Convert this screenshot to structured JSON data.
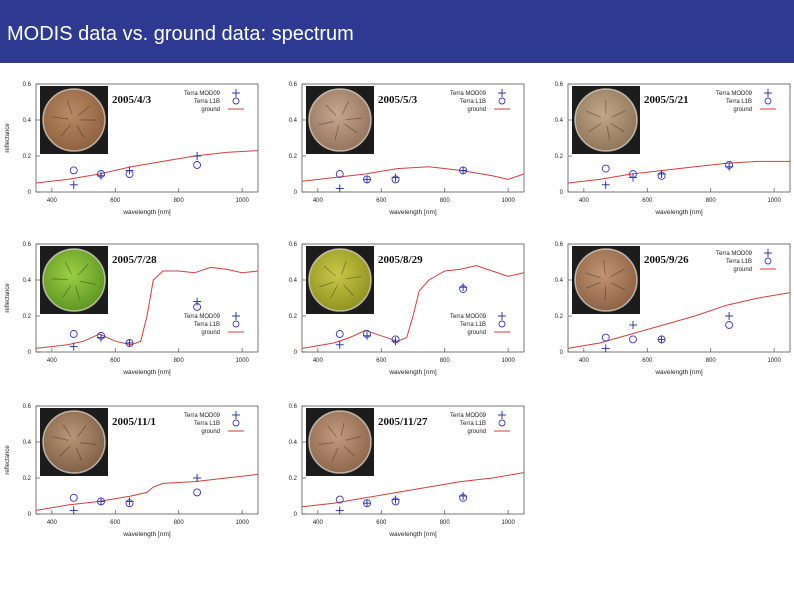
{
  "slide": {
    "title": "MODIS data vs. ground data: spectrum"
  },
  "colors": {
    "title_bar": "#2e3a91",
    "ground_line": "#d2403c",
    "terra_l1b": "#3b39c0",
    "terra_mod09": "#1d2a9a"
  },
  "chart_data": [
    {
      "type": "line",
      "date": "2005/4/3",
      "xlabel": "wavelength [nm]",
      "ylabel": "reflectance",
      "xticks": [
        "400",
        "600",
        "800",
        "1000"
      ],
      "yticks": [
        "0",
        "0.2",
        "0.4",
        "0.6"
      ],
      "xlim": [
        350,
        1050
      ],
      "ylim": [
        0,
        0.6
      ],
      "legend": [
        "Terra MOD09",
        "Terra L1B",
        "ground"
      ],
      "legend_position": "top-right",
      "ground": {
        "x": [
          350,
          450,
          550,
          650,
          750,
          850,
          950,
          1050
        ],
        "y": [
          0.05,
          0.07,
          0.1,
          0.14,
          0.17,
          0.2,
          0.22,
          0.23
        ]
      },
      "terra_l1b": {
        "x": [
          469,
          555,
          645,
          858
        ],
        "y": [
          0.12,
          0.1,
          0.1,
          0.15
        ]
      },
      "terra_mod09": {
        "x": [
          469,
          555,
          645,
          858
        ],
        "y": [
          0.04,
          0.09,
          0.12,
          0.2
        ]
      }
    },
    {
      "type": "line",
      "date": "2005/5/3",
      "xlabel": "wavelength [nm]",
      "ylabel": "",
      "xticks": [
        "400",
        "600",
        "800",
        "1000"
      ],
      "yticks": [
        "0",
        "0.2",
        "0.4",
        "0.6"
      ],
      "xlim": [
        350,
        1050
      ],
      "ylim": [
        0,
        0.6
      ],
      "legend": [
        "Terra MOD09",
        "Terra L1B",
        "ground"
      ],
      "legend_position": "top-right",
      "ground": {
        "x": [
          350,
          450,
          550,
          650,
          750,
          850,
          950,
          1000,
          1050
        ],
        "y": [
          0.06,
          0.08,
          0.1,
          0.13,
          0.14,
          0.12,
          0.09,
          0.07,
          0.1
        ]
      },
      "terra_l1b": {
        "x": [
          469,
          555,
          645,
          858
        ],
        "y": [
          0.1,
          0.07,
          0.07,
          0.12
        ]
      },
      "terra_mod09": {
        "x": [
          469,
          555,
          645,
          858
        ],
        "y": [
          0.02,
          0.07,
          0.08,
          0.12
        ]
      }
    },
    {
      "type": "line",
      "date": "2005/5/21",
      "xlabel": "wavelength [nm]",
      "ylabel": "",
      "xticks": [
        "400",
        "600",
        "800",
        "1000"
      ],
      "yticks": [
        "0",
        "0.2",
        "0.4",
        "0.6"
      ],
      "xlim": [
        350,
        1050
      ],
      "ylim": [
        0,
        0.6
      ],
      "legend": [
        "Terra MOD09",
        "Terra L1B",
        "ground"
      ],
      "legend_position": "top-right",
      "ground": {
        "x": [
          350,
          450,
          550,
          650,
          750,
          850,
          950,
          1050
        ],
        "y": [
          0.05,
          0.07,
          0.1,
          0.12,
          0.14,
          0.16,
          0.17,
          0.17
        ]
      },
      "terra_l1b": {
        "x": [
          469,
          555,
          645,
          858
        ],
        "y": [
          0.13,
          0.1,
          0.09,
          0.15
        ]
      },
      "terra_mod09": {
        "x": [
          469,
          555,
          645,
          858
        ],
        "y": [
          0.04,
          0.08,
          0.1,
          0.14
        ]
      }
    },
    {
      "type": "line",
      "date": "2005/7/28",
      "xlabel": "wavelength [nm]",
      "ylabel": "reflectance",
      "xticks": [
        "400",
        "600",
        "800",
        "1000"
      ],
      "yticks": [
        "0",
        "0.2",
        "0.4",
        "0.6"
      ],
      "xlim": [
        350,
        1050
      ],
      "ylim": [
        0,
        0.6
      ],
      "legend": [
        "Terra MOD09",
        "Terra L1B",
        "ground"
      ],
      "legend_position": "bottom-right",
      "ground": {
        "x": [
          350,
          450,
          500,
          550,
          600,
          650,
          680,
          700,
          720,
          750,
          800,
          850,
          900,
          950,
          1000,
          1050
        ],
        "y": [
          0.02,
          0.04,
          0.06,
          0.1,
          0.06,
          0.04,
          0.06,
          0.2,
          0.4,
          0.45,
          0.45,
          0.44,
          0.47,
          0.46,
          0.44,
          0.45
        ]
      },
      "terra_l1b": {
        "x": [
          469,
          555,
          645,
          858
        ],
        "y": [
          0.1,
          0.09,
          0.05,
          0.25
        ]
      },
      "terra_mod09": {
        "x": [
          469,
          555,
          645,
          858
        ],
        "y": [
          0.03,
          0.08,
          0.05,
          0.28
        ]
      }
    },
    {
      "type": "line",
      "date": "2005/8/29",
      "xlabel": "wavelength [nm]",
      "ylabel": "",
      "xticks": [
        "400",
        "600",
        "800",
        "1000"
      ],
      "yticks": [
        "0",
        "0.2",
        "0.4",
        "0.6"
      ],
      "xlim": [
        350,
        1050
      ],
      "ylim": [
        0,
        0.6
      ],
      "legend": [
        "Terra MOD09",
        "Terra L1B",
        "ground"
      ],
      "legend_position": "bottom-right",
      "ground": {
        "x": [
          350,
          450,
          500,
          550,
          600,
          650,
          680,
          700,
          720,
          750,
          800,
          850,
          900,
          950,
          1000,
          1050
        ],
        "y": [
          0.02,
          0.05,
          0.08,
          0.12,
          0.09,
          0.06,
          0.08,
          0.2,
          0.34,
          0.4,
          0.45,
          0.46,
          0.48,
          0.45,
          0.42,
          0.44
        ]
      },
      "terra_l1b": {
        "x": [
          469,
          555,
          645,
          858
        ],
        "y": [
          0.1,
          0.1,
          0.07,
          0.35
        ]
      },
      "terra_mod09": {
        "x": [
          469,
          555,
          645,
          858
        ],
        "y": [
          0.04,
          0.09,
          0.06,
          0.36
        ]
      }
    },
    {
      "type": "line",
      "date": "2005/9/26",
      "xlabel": "wavelength [nm]",
      "ylabel": "",
      "xticks": [
        "400",
        "600",
        "800",
        "1000"
      ],
      "yticks": [
        "0",
        "0.2",
        "0.4",
        "0.6"
      ],
      "xlim": [
        350,
        1050
      ],
      "ylim": [
        0,
        0.6
      ],
      "legend": [
        "Terra MOD09",
        "Terra L1B",
        "ground"
      ],
      "legend_position": "top-right",
      "ground": {
        "x": [
          350,
          450,
          550,
          650,
          750,
          850,
          950,
          1050
        ],
        "y": [
          0.02,
          0.05,
          0.1,
          0.15,
          0.2,
          0.26,
          0.3,
          0.33
        ]
      },
      "terra_l1b": {
        "x": [
          469,
          555,
          645,
          858
        ],
        "y": [
          0.08,
          0.07,
          0.07,
          0.15
        ]
      },
      "terra_mod09": {
        "x": [
          469,
          555,
          645,
          858
        ],
        "y": [
          0.02,
          0.15,
          0.07,
          0.2
        ]
      }
    },
    {
      "type": "line",
      "date": "2005/11/1",
      "xlabel": "wavelength [nm]",
      "ylabel": "reflectance",
      "xticks": [
        "400",
        "600",
        "800",
        "1000"
      ],
      "yticks": [
        "0",
        "0.2",
        "0.4",
        "0.6"
      ],
      "xlim": [
        350,
        1050
      ],
      "ylim": [
        0,
        0.6
      ],
      "legend": [
        "Terra MOD09",
        "Terra L1B",
        "ground"
      ],
      "legend_position": "top-right",
      "ground": {
        "x": [
          350,
          450,
          550,
          650,
          700,
          720,
          750,
          850,
          950,
          1050
        ],
        "y": [
          0.02,
          0.05,
          0.07,
          0.1,
          0.12,
          0.15,
          0.17,
          0.18,
          0.2,
          0.22
        ]
      },
      "terra_l1b": {
        "x": [
          469,
          555,
          645,
          858
        ],
        "y": [
          0.09,
          0.07,
          0.06,
          0.12
        ]
      },
      "terra_mod09": {
        "x": [
          469,
          555,
          645,
          858
        ],
        "y": [
          0.02,
          0.07,
          0.07,
          0.2
        ]
      }
    },
    {
      "type": "line",
      "date": "2005/11/27",
      "xlabel": "wavelength [nm]",
      "ylabel": "",
      "xticks": [
        "400",
        "600",
        "800",
        "1000"
      ],
      "yticks": [
        "0",
        "0.2",
        "0.4",
        "0.6"
      ],
      "xlim": [
        350,
        1050
      ],
      "ylim": [
        0,
        0.6
      ],
      "legend": [
        "Terra MOD09",
        "Terra L1B",
        "ground"
      ],
      "legend_position": "top-right",
      "ground": {
        "x": [
          350,
          450,
          550,
          650,
          750,
          850,
          950,
          1050
        ],
        "y": [
          0.04,
          0.06,
          0.09,
          0.12,
          0.15,
          0.18,
          0.2,
          0.23
        ]
      },
      "terra_l1b": {
        "x": [
          469,
          555,
          645,
          858
        ],
        "y": [
          0.08,
          0.06,
          0.07,
          0.09
        ]
      },
      "terra_mod09": {
        "x": [
          469,
          555,
          645,
          858
        ],
        "y": [
          0.02,
          0.06,
          0.08,
          0.1
        ]
      }
    }
  ]
}
